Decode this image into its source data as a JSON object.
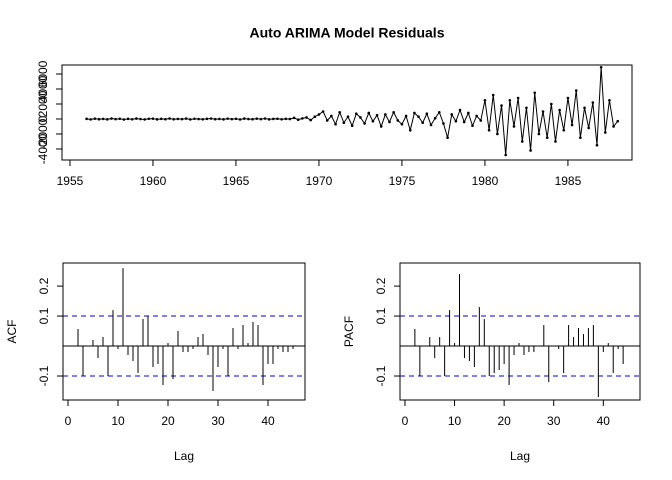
{
  "chart_data": [
    {
      "type": "line",
      "title": "Auto ARIMA Model Residuals",
      "color": "#000000",
      "x": [
        1956,
        1956.25,
        1956.5,
        1956.75,
        1957,
        1957.25,
        1957.5,
        1957.75,
        1958,
        1958.25,
        1958.5,
        1958.75,
        1959,
        1959.25,
        1959.5,
        1959.75,
        1960,
        1960.25,
        1960.5,
        1960.75,
        1961,
        1961.25,
        1961.5,
        1961.75,
        1962,
        1962.25,
        1962.5,
        1962.75,
        1963,
        1963.25,
        1963.5,
        1963.75,
        1964,
        1964.25,
        1964.5,
        1964.75,
        1965,
        1965.25,
        1965.5,
        1965.75,
        1966,
        1966.25,
        1966.5,
        1966.75,
        1967,
        1967.25,
        1967.5,
        1967.75,
        1968,
        1968.25,
        1968.5,
        1968.75,
        1969,
        1969.25,
        1969.5,
        1969.75,
        1970,
        1970.25,
        1970.5,
        1970.75,
        1971,
        1971.25,
        1971.5,
        1971.75,
        1972,
        1972.25,
        1972.5,
        1972.75,
        1973,
        1973.25,
        1973.5,
        1973.75,
        1974,
        1974.25,
        1974.5,
        1974.75,
        1975,
        1975.25,
        1975.5,
        1975.75,
        1976,
        1976.25,
        1976.5,
        1976.75,
        1977,
        1977.25,
        1977.5,
        1977.75,
        1978,
        1978.25,
        1978.5,
        1978.75,
        1979,
        1979.25,
        1979.5,
        1979.75,
        1980,
        1980.25,
        1980.5,
        1980.75,
        1981,
        1981.25,
        1981.5,
        1981.75,
        1982,
        1982.25,
        1982.5,
        1982.75,
        1983,
        1983.25,
        1983.5,
        1983.75,
        1984,
        1984.25,
        1984.5,
        1984.75,
        1985,
        1985.25,
        1985.5,
        1985.75,
        1986,
        1986.25,
        1986.5,
        1986.75,
        1987,
        1987.25,
        1987.5,
        1987.75,
        1988
      ],
      "values": [
        20,
        -60,
        40,
        -30,
        10,
        -50,
        60,
        -20,
        30,
        -70,
        20,
        -40,
        50,
        -10,
        -60,
        30,
        40,
        -50,
        20,
        -30,
        60,
        -40,
        10,
        -20,
        50,
        -60,
        30,
        -10,
        -40,
        20,
        60,
        -30,
        10,
        -50,
        40,
        -20,
        30,
        -60,
        50,
        -10,
        -30,
        40,
        -20,
        60,
        -50,
        10,
        30,
        -40,
        20,
        -10,
        150,
        -100,
        80,
        200,
        -150,
        300,
        600,
        1000,
        -200,
        400,
        -700,
        900,
        -500,
        300,
        -900,
        700,
        200,
        -600,
        800,
        -300,
        500,
        -1000,
        600,
        -400,
        900,
        -200,
        -700,
        400,
        -1500,
        800,
        300,
        -500,
        700,
        -800,
        100,
        900,
        -600,
        -2500,
        600,
        -300,
        1200,
        -400,
        800,
        -900,
        400,
        -200,
        2500,
        -1500,
        3200,
        -2000,
        1800,
        -4800,
        2500,
        -1000,
        2800,
        -3000,
        1500,
        -4200,
        3500,
        -2000,
        1000,
        -2500,
        2000,
        -3000,
        1200,
        -1500,
        2800,
        -800,
        3800,
        -2500,
        1500,
        -1200,
        2200,
        -3500,
        6900,
        -1800,
        2500,
        -1000,
        -300
      ],
      "xlim": [
        1954.52,
        1988.86
      ],
      "xticks": [
        1955,
        1960,
        1965,
        1970,
        1975,
        1980,
        1985
      ],
      "ylim": [
        -5470,
        7200
      ],
      "yticks": [
        -4000,
        -2000,
        0,
        2000,
        4000,
        6000
      ]
    },
    {
      "type": "stem",
      "xlabel": "Lag",
      "ylabel": "ACF",
      "color": "#000000",
      "ci": 0.1,
      "ci_color": "#0000cc",
      "x": [
        1,
        2,
        3,
        4,
        5,
        6,
        7,
        8,
        9,
        10,
        11,
        12,
        13,
        14,
        15,
        16,
        17,
        18,
        19,
        20,
        21,
        22,
        23,
        24,
        25,
        26,
        27,
        28,
        29,
        30,
        31,
        32,
        33,
        34,
        35,
        36,
        37,
        38,
        39,
        40,
        41,
        42,
        43,
        44,
        45
      ],
      "values": [
        0.0,
        0.057,
        -0.1,
        0.0,
        0.02,
        -0.04,
        0.03,
        -0.1,
        0.12,
        -0.01,
        0.26,
        -0.03,
        -0.05,
        -0.09,
        0.09,
        0.1,
        -0.07,
        -0.06,
        -0.13,
        0.01,
        -0.11,
        0.05,
        -0.02,
        -0.02,
        -0.01,
        0.03,
        0.04,
        -0.03,
        -0.15,
        -0.07,
        -0.01,
        -0.1,
        0.06,
        -0.01,
        0.07,
        0.01,
        0.08,
        0.07,
        -0.13,
        -0.06,
        -0.06,
        -0.01,
        -0.02,
        -0.02,
        -0.01
      ],
      "xlim": [
        -1,
        47.4
      ],
      "xticks": [
        0,
        10,
        20,
        30,
        40
      ],
      "ylim": [
        -0.18,
        0.277
      ],
      "yticks": [
        -0.1,
        0.1,
        0.2
      ]
    },
    {
      "type": "stem",
      "xlabel": "Lag",
      "ylabel": "PACF",
      "color": "#000000",
      "ci": 0.1,
      "ci_color": "#0000cc",
      "x": [
        1,
        2,
        3,
        4,
        5,
        6,
        7,
        8,
        9,
        10,
        11,
        12,
        13,
        14,
        15,
        16,
        17,
        18,
        19,
        20,
        21,
        22,
        23,
        24,
        25,
        26,
        27,
        28,
        29,
        30,
        31,
        32,
        33,
        34,
        35,
        36,
        37,
        38,
        39,
        40,
        41,
        42,
        43,
        44,
        45
      ],
      "values": [
        0.0,
        0.057,
        -0.1,
        0.0,
        0.03,
        -0.04,
        0.03,
        -0.1,
        0.12,
        0.01,
        0.24,
        -0.04,
        -0.05,
        -0.07,
        0.13,
        0.09,
        -0.1,
        -0.09,
        -0.08,
        -0.06,
        -0.13,
        -0.03,
        0.01,
        -0.03,
        -0.02,
        -0.02,
        0.0,
        0.07,
        -0.12,
        0.0,
        -0.01,
        -0.09,
        0.07,
        0.03,
        0.06,
        0.04,
        0.06,
        0.07,
        -0.17,
        -0.02,
        0.01,
        -0.09,
        -0.01,
        -0.06,
        0.0
      ],
      "xlim": [
        -1,
        47.4
      ],
      "xticks": [
        0,
        10,
        20,
        30,
        40
      ],
      "ylim": [
        -0.18,
        0.277
      ],
      "yticks": [
        -0.1,
        0.1,
        0.2
      ]
    }
  ]
}
